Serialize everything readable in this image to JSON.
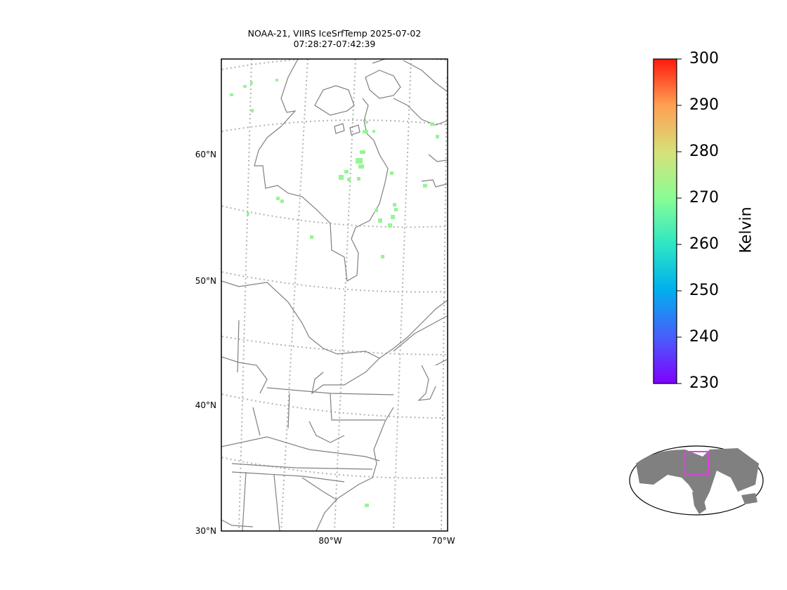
{
  "title_line1": "NOAA-21, VIIRS IceSrfTemp 2025-07-02",
  "title_line2": "07:28:27-07:42:39",
  "lat_labels": [
    "60°N",
    "50°N",
    "40°N",
    "30°N"
  ],
  "lon_labels": [
    "80°W",
    "70°W"
  ],
  "colorbar": {
    "label": "Kelvin",
    "ticks": [
      "300",
      "290",
      "280",
      "270",
      "260",
      "250",
      "240",
      "230"
    ],
    "colormap": "rainbow",
    "range": [
      230,
      300
    ]
  },
  "colors": {
    "coastline": "#808080",
    "gridline": "#b3b3b3",
    "data_point": "#96f596",
    "inset_box": "#e040e0"
  },
  "map_data": {
    "projection": "polar-like conic",
    "extent": {
      "lon": [
        -90,
        -70
      ],
      "lat": [
        30,
        65
      ]
    },
    "points_kelvin_approx": 270
  }
}
